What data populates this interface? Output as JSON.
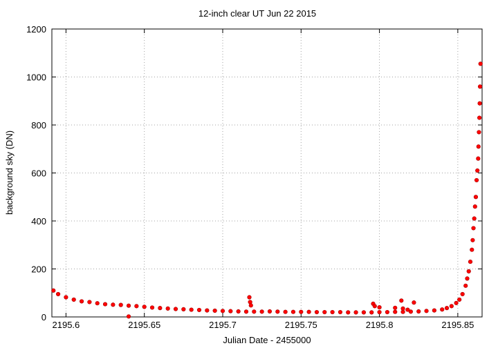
{
  "chart_data": {
    "type": "scatter",
    "title": "12-inch clear UT Jun 22 2015",
    "x_label": "Julian Date - 2455000",
    "y_label": "background sky (DN)",
    "xlim": [
      2195.591,
      2195.8655
    ],
    "ylim": [
      0,
      1200
    ],
    "xticks": [
      2195.6,
      2195.65,
      2195.7,
      2195.75,
      2195.8,
      2195.85
    ],
    "yticks": [
      0,
      200,
      400,
      600,
      800,
      1000,
      1200
    ],
    "grid": true,
    "color": "#ff0000",
    "x": [
      2195.592,
      2195.595,
      2195.6,
      2195.605,
      2195.61,
      2195.615,
      2195.62,
      2195.625,
      2195.63,
      2195.635,
      2195.64,
      2195.645,
      2195.65,
      2195.655,
      2195.66,
      2195.665,
      2195.67,
      2195.675,
      2195.68,
      2195.685,
      2195.69,
      2195.695,
      2195.7,
      2195.705,
      2195.71,
      2195.715,
      2195.72,
      2195.725,
      2195.73,
      2195.735,
      2195.74,
      2195.745,
      2195.75,
      2195.755,
      2195.76,
      2195.765,
      2195.77,
      2195.775,
      2195.78,
      2195.785,
      2195.79,
      2195.795,
      2195.8,
      2195.805,
      2195.81,
      2195.815,
      2195.82,
      2195.825,
      2195.83,
      2195.835,
      2195.84,
      2195.843,
      2195.846,
      2195.849,
      2195.851,
      2195.853,
      2195.855,
      2195.856,
      2195.857,
      2195.858,
      2195.859,
      2195.8595,
      2195.86,
      2195.8605,
      2195.861,
      2195.8615,
      2195.862,
      2195.8625,
      2195.863,
      2195.8632,
      2195.8635,
      2195.8638,
      2195.864,
      2195.8642,
      2195.8645,
      2195.64,
      2195.717,
      2195.7175,
      2195.718,
      2195.796,
      2195.797,
      2195.8,
      2195.81,
      2195.814,
      2195.815,
      2195.818,
      2195.822
    ],
    "values": [
      110,
      95,
      82,
      72,
      65,
      62,
      57,
      53,
      51,
      50,
      47,
      45,
      42,
      39,
      37,
      35,
      33,
      32,
      30,
      29,
      27,
      26,
      25,
      24,
      23,
      22,
      22,
      22,
      23,
      22,
      21,
      21,
      21,
      21,
      20,
      20,
      20,
      20,
      19,
      19,
      19,
      19,
      20,
      20,
      21,
      21,
      22,
      23,
      25,
      27,
      31,
      37,
      45,
      58,
      72,
      95,
      130,
      160,
      190,
      230,
      280,
      320,
      370,
      410,
      460,
      500,
      570,
      610,
      660,
      710,
      770,
      830,
      890,
      960,
      1055,
      2,
      82,
      62,
      48,
      55,
      45,
      40,
      38,
      68,
      35,
      30,
      60
    ]
  }
}
